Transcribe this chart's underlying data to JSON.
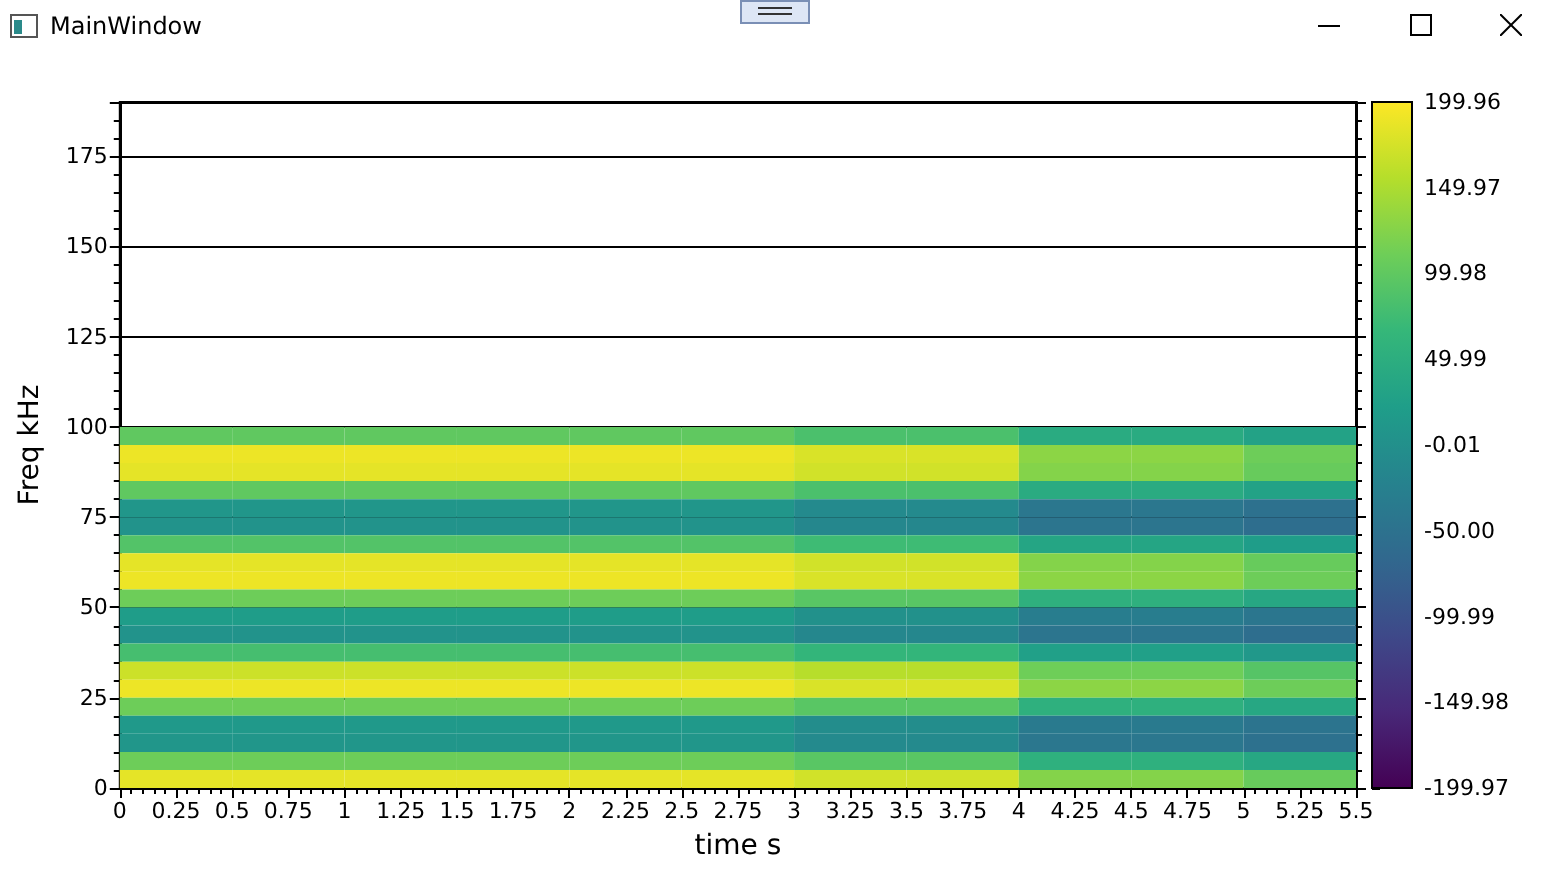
{
  "chart_data": {
    "type": "heatmap",
    "xlabel": "time s",
    "ylabel": "Freq kHz",
    "annotations": [
      "MainWindow"
    ],
    "x": [
      0.25,
      0.75,
      1.25,
      1.75,
      2.25,
      2.75,
      3.25,
      3.75,
      4.25,
      4.75,
      5.25
    ],
    "y": [
      97.5,
      92.5,
      87.5,
      82.5,
      77.5,
      72.5,
      67.5,
      62.5,
      57.5,
      52.5,
      47.5,
      42.5,
      37.5,
      32.5,
      27.5,
      22.5,
      17.5,
      12.5,
      7.5,
      2.5
    ],
    "cells": [
      [
        100,
        100,
        100,
        100,
        100,
        100,
        84,
        84,
        45,
        45,
        30
      ],
      [
        190,
        190,
        190,
        190,
        190,
        190,
        178,
        178,
        130,
        130,
        110
      ],
      [
        185,
        185,
        185,
        185,
        185,
        185,
        173,
        173,
        125,
        125,
        106
      ],
      [
        100,
        100,
        100,
        100,
        100,
        100,
        84,
        84,
        45,
        45,
        30
      ],
      [
        10,
        10,
        10,
        10,
        10,
        10,
        -10,
        -10,
        -41,
        -41,
        -51
      ],
      [
        5,
        5,
        5,
        5,
        5,
        5,
        -15,
        -15,
        -45,
        -45,
        -56
      ],
      [
        90,
        90,
        90,
        90,
        90,
        90,
        74,
        74,
        35,
        35,
        21
      ],
      [
        185,
        185,
        185,
        185,
        185,
        185,
        173,
        173,
        125,
        125,
        106
      ],
      [
        190,
        190,
        190,
        190,
        190,
        190,
        178,
        178,
        130,
        130,
        110
      ],
      [
        110,
        110,
        110,
        110,
        110,
        110,
        95,
        95,
        54,
        54,
        38
      ],
      [
        20,
        20,
        20,
        20,
        20,
        20,
        1,
        1,
        -31,
        -31,
        -42
      ],
      [
        5,
        5,
        5,
        5,
        5,
        5,
        -15,
        -15,
        -45,
        -45,
        -56
      ],
      [
        80,
        80,
        80,
        80,
        80,
        80,
        63,
        63,
        26,
        26,
        12
      ],
      [
        170,
        170,
        170,
        170,
        170,
        170,
        157,
        157,
        111,
        111,
        92
      ],
      [
        190,
        190,
        190,
        190,
        190,
        190,
        178,
        178,
        130,
        130,
        110
      ],
      [
        110,
        110,
        110,
        110,
        110,
        110,
        95,
        95,
        54,
        54,
        38
      ],
      [
        15,
        15,
        15,
        15,
        15,
        15,
        -4,
        -4,
        -36,
        -36,
        -47
      ],
      [
        10,
        10,
        10,
        10,
        10,
        10,
        -10,
        -10,
        -41,
        -41,
        -51
      ],
      [
        110,
        110,
        110,
        110,
        110,
        110,
        95,
        95,
        54,
        54,
        38
      ],
      [
        185,
        185,
        185,
        185,
        185,
        185,
        173,
        173,
        125,
        125,
        106
      ]
    ],
    "xlim": [
      0,
      5.5
    ],
    "xticks": [
      0,
      0.25,
      0.5,
      0.75,
      1,
      1.25,
      1.5,
      1.75,
      2,
      2.25,
      2.5,
      2.75,
      3,
      3.25,
      3.5,
      3.75,
      4,
      4.25,
      4.5,
      4.75,
      5,
      5.25,
      5.5
    ],
    "ylim": [
      0,
      190
    ],
    "yticks": [
      0,
      25,
      50,
      75,
      100,
      125,
      150,
      175
    ],
    "clim": [
      -199.97,
      199.96
    ],
    "cticks": [
      199.96,
      149.97,
      99.98,
      49.99,
      -0.01,
      {
        "value": -50,
        "label": "-50.00"
      },
      -99.99,
      -149.98,
      -199.97
    ],
    "grid": "y"
  }
}
